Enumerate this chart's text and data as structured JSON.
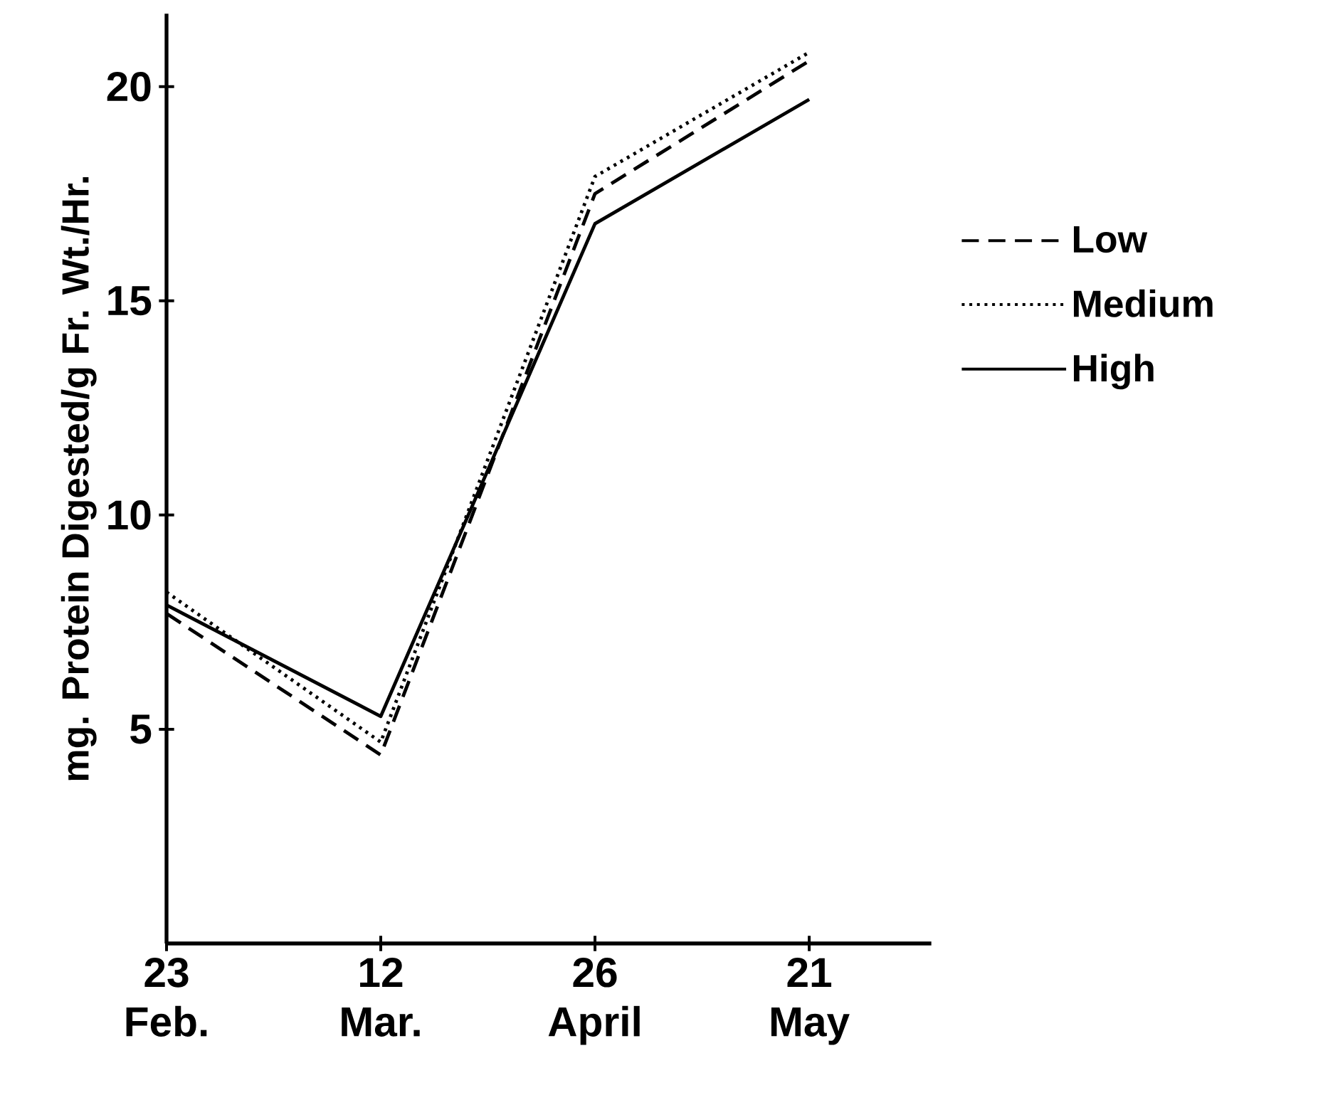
{
  "chart_data": {
    "type": "line",
    "ylabel": "mg. Protein Digested/g Fr. Wt./Hr.",
    "categories": [
      "23 Feb.",
      "12 Mar.",
      "26 April",
      "21 May"
    ],
    "ylim": [
      0,
      21.7
    ],
    "yticks": [
      5,
      10,
      15,
      20
    ],
    "grid": false,
    "legend": "right",
    "marker": "none",
    "series": [
      {
        "name": "Low",
        "color": "#000000",
        "line_style": "dashed",
        "values": [
          7.7,
          4.4,
          17.5,
          20.6
        ]
      },
      {
        "name": "Medium",
        "color": "#000000",
        "line_style": "dotted",
        "values": [
          8.2,
          4.7,
          17.9,
          20.8
        ]
      },
      {
        "name": "High",
        "color": "#000000",
        "line_style": "solid",
        "values": [
          7.9,
          5.3,
          16.8,
          19.7
        ]
      }
    ]
  }
}
